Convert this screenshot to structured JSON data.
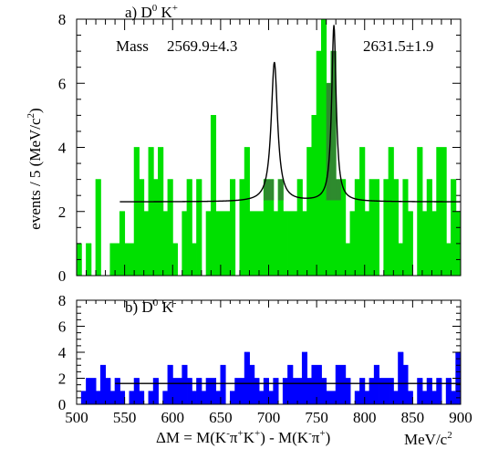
{
  "chart_data": [
    {
      "type": "bar",
      "panel_label_prefix": "a) D",
      "panel_label_sup1": "0",
      "panel_label_mid": " K",
      "panel_label_sup2": "+",
      "ylabel": "events / 5 (MeV/c",
      "ylabel_sup": "2",
      "ylabel_end": ")",
      "annotation_mass": "Mass",
      "annotation_peak1": "2569.9±4.3",
      "annotation_peak2": "2631.5±1.9",
      "xlim": [
        500,
        900
      ],
      "ylim": [
        0,
        8
      ],
      "yticks": [
        "0",
        "2",
        "4",
        "6",
        "8"
      ],
      "bin_width": 5,
      "bin_start": 500,
      "colors": {
        "histogram": "#00e000",
        "signal": "#2e8b2e",
        "fit": "#000000"
      },
      "values": [
        1,
        0,
        1,
        0,
        3,
        0,
        0,
        1,
        1,
        2,
        1,
        1,
        4,
        3,
        2,
        4,
        3,
        4,
        2,
        3,
        1,
        0,
        2,
        3,
        1,
        3,
        0,
        2,
        5,
        2,
        2,
        2,
        3,
        0,
        3,
        4,
        2,
        2,
        2,
        3,
        3,
        2,
        3,
        2,
        2,
        2,
        3,
        2,
        4,
        5,
        7,
        8,
        6,
        7,
        3,
        3,
        1,
        2,
        3,
        4,
        2,
        3,
        3,
        0,
        3,
        4,
        3,
        1,
        3,
        2,
        0,
        4,
        2,
        3,
        2,
        4,
        4,
        1,
        3,
        2
      ],
      "signal_values": [
        0,
        0,
        0,
        0,
        0,
        0,
        0,
        0,
        0,
        0,
        0,
        0,
        0,
        0,
        0,
        0,
        0,
        0,
        0,
        0,
        0,
        0,
        0,
        0,
        0,
        0,
        0,
        0,
        0,
        0,
        0,
        0,
        0,
        0,
        0,
        0,
        0,
        0,
        0,
        0,
        0,
        0,
        0,
        0,
        0,
        0,
        0,
        0,
        0,
        0,
        0,
        0,
        0,
        0,
        1,
        0,
        0,
        0,
        0,
        0,
        0,
        0,
        0,
        0,
        0,
        0,
        0,
        0,
        0,
        0,
        0,
        0,
        0,
        0,
        0,
        0,
        0,
        0,
        0,
        0
      ],
      "signal_regions": [
        {
          "x0": 695,
          "x1": 720,
          "level": 2.35
        },
        {
          "x0": 760,
          "x1": 775,
          "level": 2.35
        }
      ],
      "fit": {
        "background": 2.3,
        "fit_x_start": 545,
        "peaks": [
          {
            "mean": 706,
            "height": 4.35,
            "width": 4.0
          },
          {
            "mean": 768,
            "height": 5.5,
            "width": 2.8
          }
        ]
      }
    },
    {
      "type": "bar",
      "panel_label_prefix": "b) D",
      "panel_label_sup1": "0",
      "panel_label_mid": " K",
      "panel_label_sup2": "-",
      "xlabel": "ΔM = M(K",
      "xlabel_parts": [
        "ΔM = M(K",
        "-",
        "π",
        "+",
        "K",
        "+",
        ") - M(K",
        "-",
        "π",
        "+",
        ")"
      ],
      "xunit": "MeV/c",
      "xunit_sup": "2",
      "xlim": [
        500,
        900
      ],
      "ylim": [
        0,
        8
      ],
      "xticks": [
        "500",
        "550",
        "600",
        "650",
        "700",
        "750",
        "800",
        "850",
        "900"
      ],
      "yticks": [
        "0",
        "2",
        "4",
        "6",
        "8"
      ],
      "bin_width": 5,
      "bin_start": 500,
      "colors": {
        "histogram": "#0000ff",
        "fit": "#000000"
      },
      "values": [
        0,
        1,
        2,
        2,
        1,
        3,
        2,
        1,
        2,
        1,
        0,
        1,
        2,
        1,
        0,
        1,
        2,
        0,
        1,
        3,
        2,
        2,
        3,
        2,
        1,
        2,
        1,
        2,
        2,
        1,
        3,
        0,
        1,
        2,
        2,
        4,
        3,
        2,
        1,
        2,
        1,
        2,
        0,
        2,
        3,
        2,
        2,
        4,
        2,
        3,
        3,
        2,
        1,
        1,
        3,
        3,
        2,
        0,
        1,
        2,
        1,
        2,
        3,
        2,
        2,
        2,
        1,
        4,
        3,
        1,
        0,
        2,
        1,
        2,
        1,
        2,
        0,
        2,
        1,
        4
      ],
      "fit": {
        "background": 1.6,
        "fit_x_start": 540
      }
    }
  ]
}
